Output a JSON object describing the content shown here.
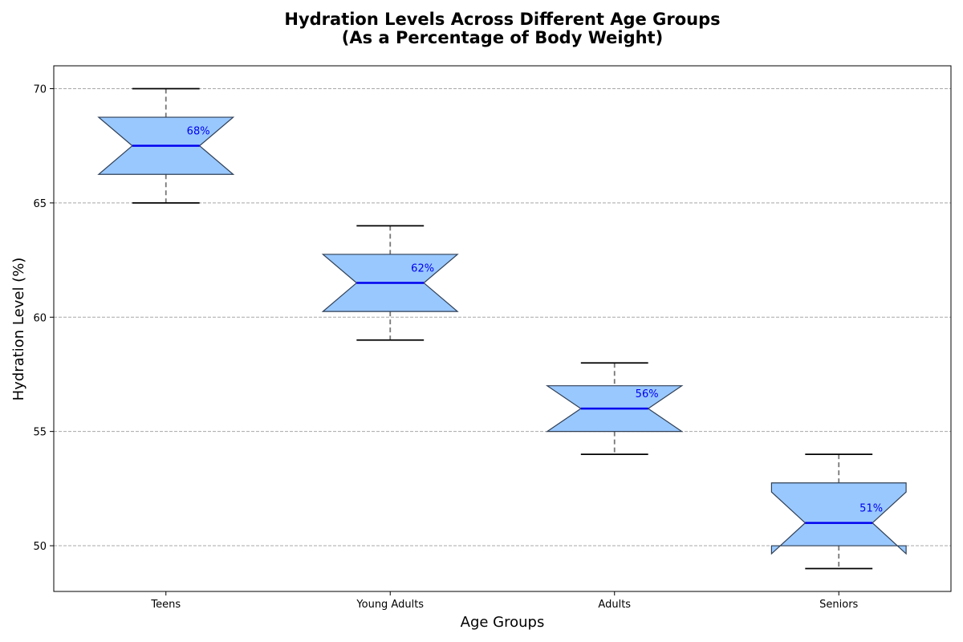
{
  "chart_data": {
    "type": "box",
    "title_line1": "Hydration Levels Across Different Age Groups",
    "title_line2": "(As a Percentage of Body Weight)",
    "xlabel": "Age Groups",
    "ylabel": "Hydration Level (%)",
    "ylim": [
      48,
      71
    ],
    "yticks": [
      50,
      55,
      60,
      65,
      70
    ],
    "grid": "horizontal dashed",
    "notched": true,
    "categories": [
      "Teens",
      "Young Adults",
      "Adults",
      "Seniors"
    ],
    "boxes": [
      {
        "name": "Teens",
        "whisker_low": 65,
        "q1": 66.25,
        "median": 67.5,
        "q3": 68.75,
        "whisker_high": 70,
        "notch_low": 66.25,
        "notch_high": 68.75,
        "median_label": "68%"
      },
      {
        "name": "Young Adults",
        "whisker_low": 59,
        "q1": 60.25,
        "median": 61.5,
        "q3": 62.75,
        "whisker_high": 64,
        "notch_low": 60.25,
        "notch_high": 62.75,
        "median_label": "62%"
      },
      {
        "name": "Adults",
        "whisker_low": 54,
        "q1": 55,
        "median": 56,
        "q3": 57,
        "whisker_high": 58,
        "notch_low": 55,
        "notch_high": 57,
        "median_label": "56%"
      },
      {
        "name": "Seniors",
        "whisker_low": 49,
        "q1": 50,
        "median": 51,
        "q3": 52.75,
        "whisker_high": 54,
        "notch_low": 49.65,
        "notch_high": 52.35,
        "median_label": "51%"
      }
    ],
    "colors": {
      "box_fill": "#99c8ff",
      "box_edge": "#2f3f55",
      "median": "#0000ee",
      "whisker": "#777777",
      "cap": "#000000",
      "grid": "#a8a8a8",
      "median_text": "#0000ee"
    }
  }
}
